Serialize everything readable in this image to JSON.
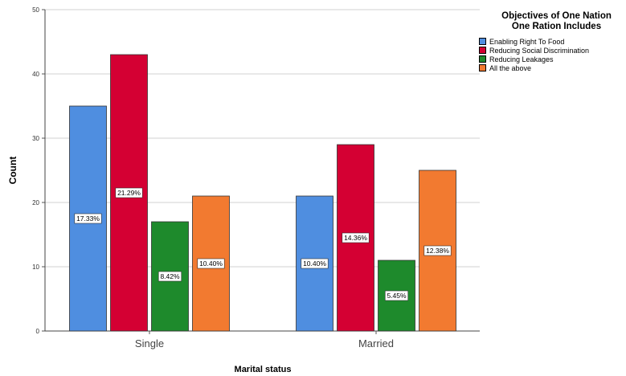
{
  "chart_data": {
    "type": "bar",
    "xlabel": "Marital status",
    "ylabel": "Count",
    "ylim": [
      0,
      50
    ],
    "yticks": [
      0,
      10,
      20,
      30,
      40,
      50
    ],
    "grid": true,
    "legend_position": "top-right",
    "legend_title_lines": [
      "Objectives of One Nation",
      "One Ration Includes"
    ],
    "categories": [
      "Single",
      "Married"
    ],
    "series": [
      {
        "name": "Enabling Right To Food",
        "color": "#4f8ee0",
        "values": [
          35,
          21
        ],
        "labels": [
          "17.33%",
          "10.40%"
        ]
      },
      {
        "name": "Reducing Social Discrimination",
        "color": "#d40033",
        "values": [
          43,
          29
        ],
        "labels": [
          "21.29%",
          "14.36%"
        ]
      },
      {
        "name": "Reducing Leakages",
        "color": "#1e8a2c",
        "values": [
          17,
          11
        ],
        "labels": [
          "8.42%",
          "5.45%"
        ]
      },
      {
        "name": "All the above",
        "color": "#f27a30",
        "values": [
          21,
          25
        ],
        "labels": [
          "10.40%",
          "12.38%"
        ]
      }
    ]
  }
}
